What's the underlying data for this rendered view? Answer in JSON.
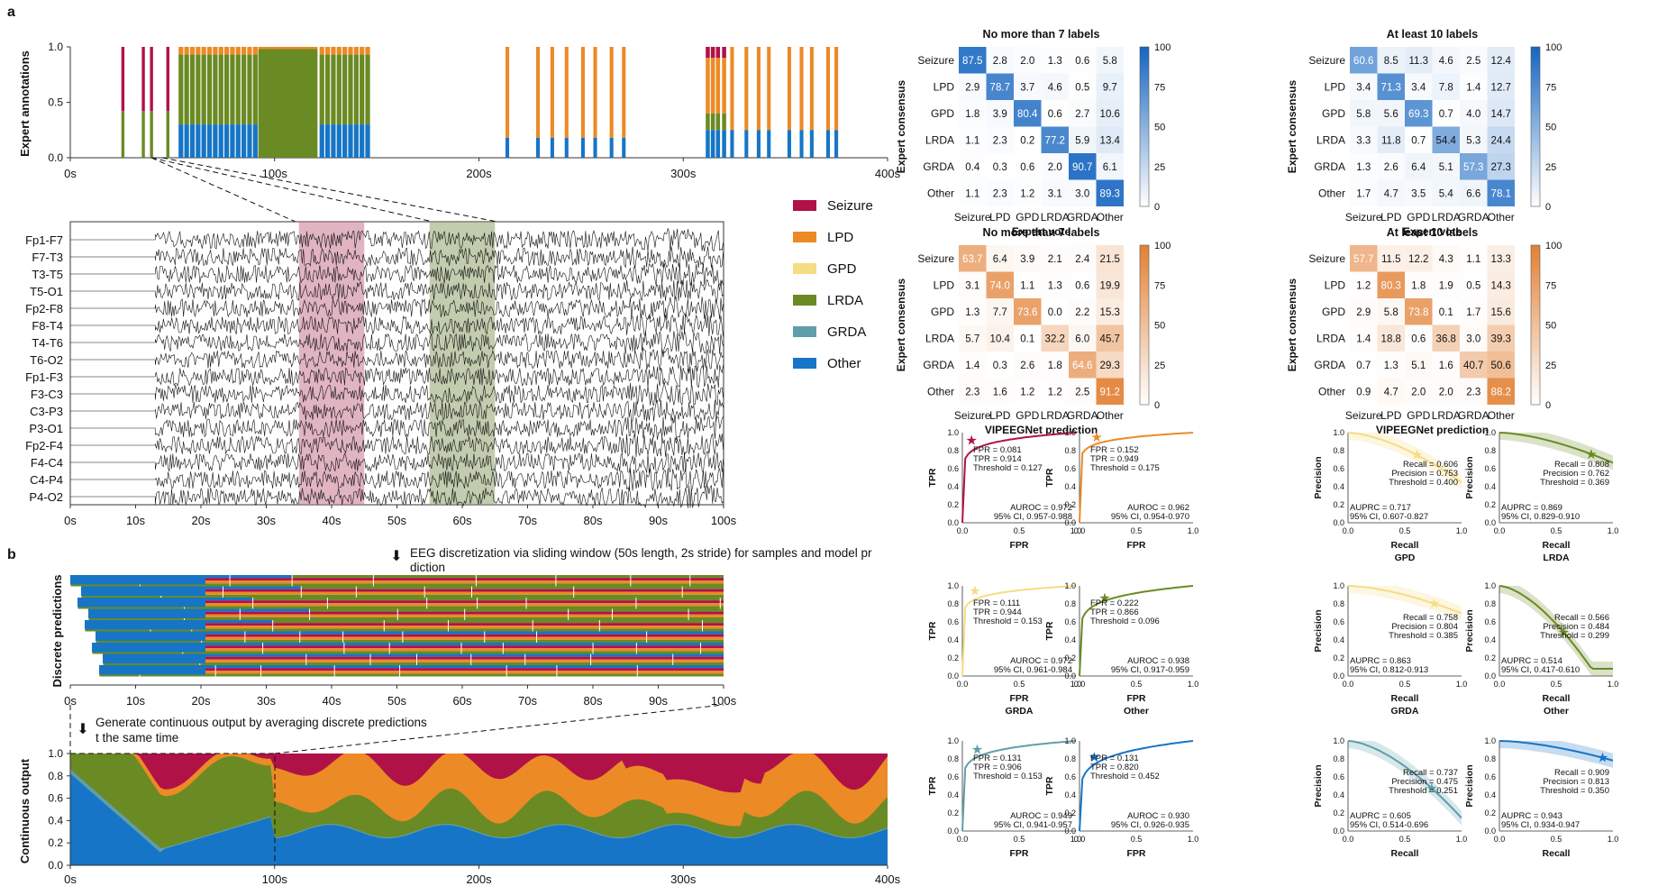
{
  "panel_labels": {
    "a": "a",
    "b": "b"
  },
  "colors": {
    "Seizure": "#b01248",
    "LPD": "#ec8a25",
    "GPD": "#f6dc85",
    "LRDA": "#6a8a24",
    "GRDA": "#5f9eaa",
    "Other": "#1675c6"
  },
  "legend": [
    "Seizure",
    "LPD",
    "GPD",
    "LRDA",
    "GRDA",
    "Other"
  ],
  "annotations_chart": {
    "ylabel": "Expert annotations",
    "yticks": [
      "0.0",
      "0.5",
      "1.0"
    ],
    "xticks": [
      "0s",
      "100s",
      "200s",
      "300s",
      "400s"
    ]
  },
  "eeg": {
    "channels": [
      "Fp1-F7",
      "F7-T3",
      "T3-T5",
      "T5-O1",
      "Fp2-F8",
      "F8-T4",
      "T4-T6",
      "T6-O2",
      "Fp1-F3",
      "F3-C3",
      "C3-P3",
      "P3-O1",
      "Fp2-F4",
      "F4-C4",
      "C4-P4",
      "P4-O2"
    ],
    "xticks": [
      "0s",
      "10s",
      "20s",
      "30s",
      "40s",
      "50s",
      "60s",
      "70s",
      "80s",
      "90s",
      "100s"
    ]
  },
  "discrete": {
    "ylabel": "Discrete predictions",
    "note": "EEG discretization via sliding window (50s length, 2s stride) for samples and model prediction",
    "xticks": [
      "0s",
      "10s",
      "20s",
      "30s",
      "40s",
      "50s",
      "60s",
      "70s",
      "80s",
      "90s",
      "100s"
    ]
  },
  "continuous": {
    "ylabel": "Continuous output",
    "note": "Generate continuous output by averaging discrete predictions at the same time",
    "yticks": [
      "0.0",
      "0.2",
      "0.4",
      "0.6",
      "0.8",
      "1.0"
    ],
    "xticks": [
      "0s",
      "100s",
      "200s",
      "300s",
      "400s"
    ]
  },
  "cm_labels": [
    "Seizure",
    "LPD",
    "GPD",
    "LRDA",
    "GRDA",
    "Other"
  ],
  "cm_cbar_ticks": [
    "0",
    "25",
    "50",
    "75",
    "100"
  ],
  "chart_data": [
    {
      "type": "heatmap",
      "title": "No more than 7 labels",
      "xlabel": "Expert vote",
      "ylabel": "Expert consensus",
      "values": [
        [
          87.5,
          2.8,
          2.0,
          1.3,
          0.6,
          5.8
        ],
        [
          2.9,
          78.7,
          3.7,
          4.6,
          0.5,
          9.7
        ],
        [
          1.8,
          3.9,
          80.4,
          0.6,
          2.7,
          10.6
        ],
        [
          1.1,
          2.3,
          0.2,
          77.2,
          5.9,
          13.4
        ],
        [
          0.4,
          0.3,
          0.6,
          2.0,
          90.7,
          6.1
        ],
        [
          1.1,
          2.3,
          1.2,
          3.1,
          3.0,
          89.3
        ]
      ]
    },
    {
      "type": "heatmap",
      "title": "At least 10 labels",
      "xlabel": "Expert vote",
      "ylabel": "Expert consensus",
      "values": [
        [
          60.6,
          8.5,
          11.3,
          4.6,
          2.5,
          12.4
        ],
        [
          3.4,
          71.3,
          3.4,
          7.8,
          1.4,
          12.7
        ],
        [
          5.8,
          5.6,
          69.3,
          0.7,
          4.0,
          14.7
        ],
        [
          3.3,
          11.8,
          0.7,
          54.4,
          5.3,
          24.4
        ],
        [
          1.3,
          2.6,
          6.4,
          5.1,
          57.3,
          27.3
        ],
        [
          1.7,
          4.7,
          3.5,
          5.4,
          6.6,
          78.1
        ]
      ]
    },
    {
      "type": "heatmap",
      "title": "No more than 7 labels",
      "xlabel": "VIPEEGNet prediction",
      "ylabel": "Expert consensus",
      "values": [
        [
          63.7,
          6.4,
          3.9,
          2.1,
          2.4,
          21.5
        ],
        [
          3.1,
          74.0,
          1.1,
          1.3,
          0.6,
          19.9
        ],
        [
          1.3,
          7.7,
          73.6,
          0.0,
          2.2,
          15.3
        ],
        [
          5.7,
          10.4,
          0.1,
          32.2,
          6.0,
          45.7
        ],
        [
          1.4,
          0.3,
          2.6,
          1.8,
          64.6,
          29.3
        ],
        [
          2.3,
          1.6,
          1.2,
          1.2,
          2.5,
          91.2
        ]
      ]
    },
    {
      "type": "heatmap",
      "title": "At least 10 labels",
      "xlabel": "VIPEEGNet prediction",
      "ylabel": "Expert consensus",
      "values": [
        [
          57.7,
          11.5,
          12.2,
          4.3,
          1.1,
          13.3
        ],
        [
          1.2,
          80.3,
          1.8,
          1.9,
          0.5,
          14.3
        ],
        [
          2.9,
          5.8,
          73.8,
          0.1,
          1.7,
          15.6
        ],
        [
          1.4,
          18.8,
          0.6,
          36.8,
          3.0,
          39.3
        ],
        [
          0.7,
          1.3,
          5.1,
          1.6,
          40.7,
          50.6
        ],
        [
          0.9,
          4.7,
          2.0,
          2.0,
          2.3,
          88.2
        ]
      ]
    },
    {
      "type": "line",
      "subtype": "roc",
      "class": "Seizure",
      "title": "",
      "xlabel": "FPR",
      "ylabel": "TPR",
      "lines": [
        "FPR = 0.081",
        "TPR = 0.914",
        "Threshold = 0.127"
      ],
      "footer": [
        "AUROC = 0.972",
        "95% CI, 0.957-0.988"
      ],
      "point": [
        0.081,
        0.914
      ]
    },
    {
      "type": "line",
      "subtype": "roc",
      "class": "LPD",
      "title": "",
      "xlabel": "FPR",
      "ylabel": "TPR",
      "lines": [
        "FPR = 0.152",
        "TPR = 0.949",
        "Threshold = 0.175"
      ],
      "footer": [
        "AUROC = 0.962",
        "95% CI, 0.954-0.970"
      ],
      "point": [
        0.152,
        0.949
      ]
    },
    {
      "type": "line",
      "subtype": "pr",
      "class": "GPD",
      "title": "GPD",
      "xlabel": "Recall",
      "ylabel": "Precision",
      "lines": [
        "Recall = 0.606",
        "Precision = 0.753",
        "Threshold = 0.400"
      ],
      "footer": [
        "AUPRC = 0.717",
        "95% CI, 0.607-0.827"
      ],
      "point": [
        0.606,
        0.753
      ]
    },
    {
      "type": "line",
      "subtype": "pr",
      "class": "LRDA",
      "title": "LRDA",
      "xlabel": "Recall",
      "ylabel": "Precision",
      "lines": [
        "Recall = 0.808",
        "Precision = 0.762",
        "Threshold = 0.369"
      ],
      "footer": [
        "AUPRC = 0.869",
        "95% CI, 0.829-0.910"
      ],
      "point": [
        0.808,
        0.762
      ]
    },
    {
      "type": "line",
      "subtype": "roc",
      "class": "GPD",
      "title": "GRDA",
      "xlabel": "FPR",
      "ylabel": "TPR",
      "lines": [
        "FPR = 0.111",
        "TPR = 0.944",
        "Threshold = 0.153"
      ],
      "footer": [
        "AUROC = 0.972",
        "95% CI, 0.961-0.984"
      ],
      "point": [
        0.111,
        0.944
      ],
      "toplabel": "GPD"
    },
    {
      "type": "line",
      "subtype": "roc",
      "class": "LRDA",
      "title": "Other",
      "xlabel": "FPR",
      "ylabel": "TPR",
      "lines": [
        "FPR = 0.222",
        "TPR = 0.866",
        "Threshold = 0.096"
      ],
      "footer": [
        "AUROC = 0.938",
        "95% CI, 0.917-0.959"
      ],
      "point": [
        0.222,
        0.866
      ],
      "toplabel": "LRDA"
    },
    {
      "type": "line",
      "subtype": "pr",
      "class": "GPD",
      "title": "GRDA",
      "xlabel": "Recall",
      "ylabel": "Precision",
      "lines": [
        "Recall = 0.758",
        "Precision = 0.804",
        "Threshold = 0.385"
      ],
      "footer": [
        "AUPRC = 0.863",
        "95% CI, 0.812-0.913"
      ],
      "point": [
        0.758,
        0.804
      ]
    },
    {
      "type": "line",
      "subtype": "pr",
      "class": "LRDA",
      "title": "Other",
      "xlabel": "Recall",
      "ylabel": "Precision",
      "lines": [
        "Recall = 0.566",
        "Precision = 0.484",
        "Threshold = 0.299"
      ],
      "footer": [
        "AUPRC = 0.514",
        "95% CI, 0.417-0.610"
      ],
      "point": [
        0.566,
        0.484
      ]
    },
    {
      "type": "line",
      "subtype": "roc",
      "class": "GRDA",
      "title": "",
      "xlabel": "FPR",
      "ylabel": "TPR",
      "lines": [
        "FPR = 0.131",
        "TPR = 0.906",
        "Threshold = 0.153"
      ],
      "footer": [
        "AUROC = 0.949",
        "95% CI, 0.941-0.957"
      ],
      "point": [
        0.131,
        0.906
      ]
    },
    {
      "type": "line",
      "subtype": "roc",
      "class": "Other",
      "title": "",
      "xlabel": "FPR",
      "ylabel": "TPR",
      "lines": [
        "FPR = 0.131",
        "TPR = 0.820",
        "Threshold = 0.452"
      ],
      "footer": [
        "AUROC = 0.930",
        "95% CI, 0.926-0.935"
      ],
      "point": [
        0.131,
        0.82
      ]
    },
    {
      "type": "line",
      "subtype": "pr",
      "class": "GRDA",
      "title": "",
      "xlabel": "Recall",
      "ylabel": "Precision",
      "lines": [
        "Recall = 0.737",
        "Precision = 0.475",
        "Threshold = 0.251"
      ],
      "footer": [
        "AUPRC = 0.605",
        "95% CI, 0.514-0.696"
      ],
      "point": [
        0.737,
        0.475
      ]
    },
    {
      "type": "line",
      "subtype": "pr",
      "class": "Other",
      "title": "",
      "xlabel": "Recall",
      "ylabel": "Precision",
      "lines": [
        "Recall = 0.909",
        "Precision = 0.813",
        "Threshold = 0.350"
      ],
      "footer": [
        "AUPRC = 0.943",
        "95% CI, 0.934-0.947"
      ],
      "point": [
        0.909,
        0.813
      ]
    }
  ]
}
